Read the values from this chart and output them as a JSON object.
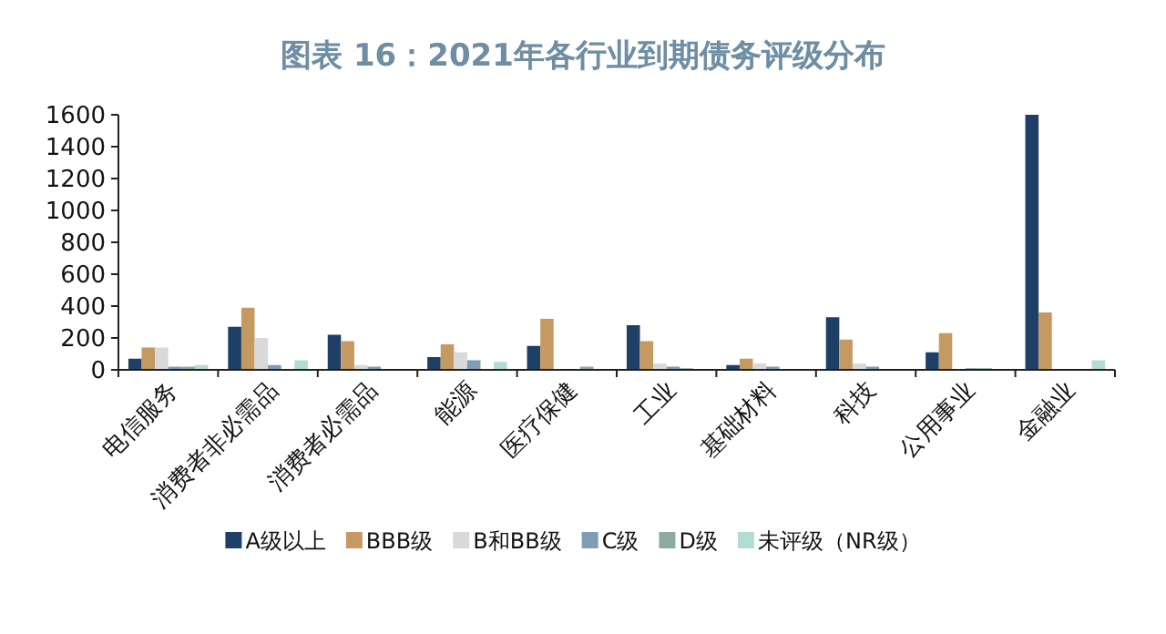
{
  "chart_data": {
    "type": "bar",
    "title": "图表 16：2021年各行业到期债务评级分布",
    "categories": [
      "电信服务",
      "消费者非必需品",
      "消费者必需品",
      "能源",
      "医疗保健",
      "工业",
      "基础材料",
      "科技",
      "公用事业",
      "金融业"
    ],
    "series": [
      {
        "name": "A级以上",
        "color": "#1f3f66",
        "values": [
          70,
          270,
          220,
          80,
          150,
          280,
          30,
          330,
          110,
          1600
        ]
      },
      {
        "name": "BBB级",
        "color": "#c49a62",
        "values": [
          140,
          390,
          180,
          160,
          320,
          180,
          70,
          190,
          230,
          360
        ]
      },
      {
        "name": "B和BB级",
        "color": "#d9d9d9",
        "values": [
          140,
          200,
          30,
          110,
          0,
          40,
          40,
          40,
          0,
          0
        ]
      },
      {
        "name": "C级",
        "color": "#7f9bb5",
        "values": [
          20,
          30,
          20,
          60,
          0,
          20,
          20,
          20,
          10,
          0
        ]
      },
      {
        "name": "D级",
        "color": "#8fa8a0",
        "values": [
          20,
          0,
          0,
          0,
          20,
          10,
          0,
          0,
          10,
          0
        ]
      },
      {
        "name": "未评级（NR级）",
        "color": "#b3dcd6",
        "values": [
          30,
          60,
          0,
          50,
          0,
          0,
          0,
          0,
          0,
          60
        ]
      }
    ],
    "ylim": [
      0,
      1600
    ],
    "yticks": [
      0,
      200,
      400,
      600,
      800,
      1000,
      1200,
      1400,
      1600
    ],
    "grid": false,
    "legend": "bottom"
  }
}
